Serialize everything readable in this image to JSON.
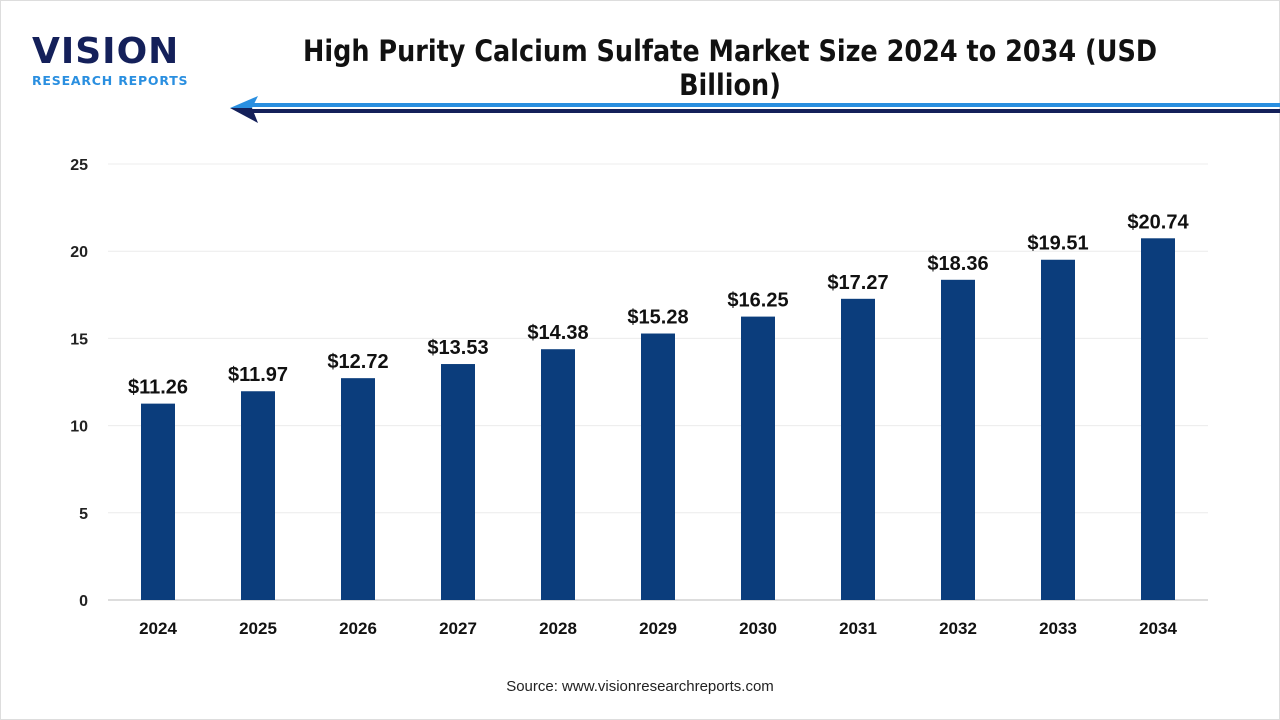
{
  "logo": {
    "main": "VISION",
    "sub": "RESEARCH REPORTS"
  },
  "header": {
    "title": "High Purity Calcium Sulfate Market Size 2024 to 2034 (USD Billion)"
  },
  "colors": {
    "bar": "#0b3d7c",
    "logo_dark": "#14205a",
    "logo_accent": "#2a8fe0",
    "arrow": "#1e4f9a"
  },
  "chart_data": {
    "type": "bar",
    "title": "High Purity Calcium Sulfate Market Size 2024 to 2034 (USD Billion)",
    "categories": [
      "2024",
      "2025",
      "2026",
      "2027",
      "2028",
      "2029",
      "2030",
      "2031",
      "2032",
      "2033",
      "2034"
    ],
    "values": [
      11.26,
      11.97,
      12.72,
      13.53,
      14.38,
      15.28,
      16.25,
      17.27,
      18.36,
      19.51,
      20.74
    ],
    "data_labels": [
      "$11.26",
      "$11.97",
      "$12.72",
      "$13.53",
      "$14.38",
      "$15.28",
      "$16.25",
      "$17.27",
      "$18.36",
      "$19.51",
      "$20.74"
    ],
    "ylim": [
      0,
      25
    ],
    "yticks": [
      "0",
      "5",
      "10",
      "15",
      "20",
      "25"
    ],
    "grid": true,
    "xlabel": "",
    "ylabel": ""
  },
  "footer": {
    "source": "Source: www.visionresearchreports.com"
  }
}
